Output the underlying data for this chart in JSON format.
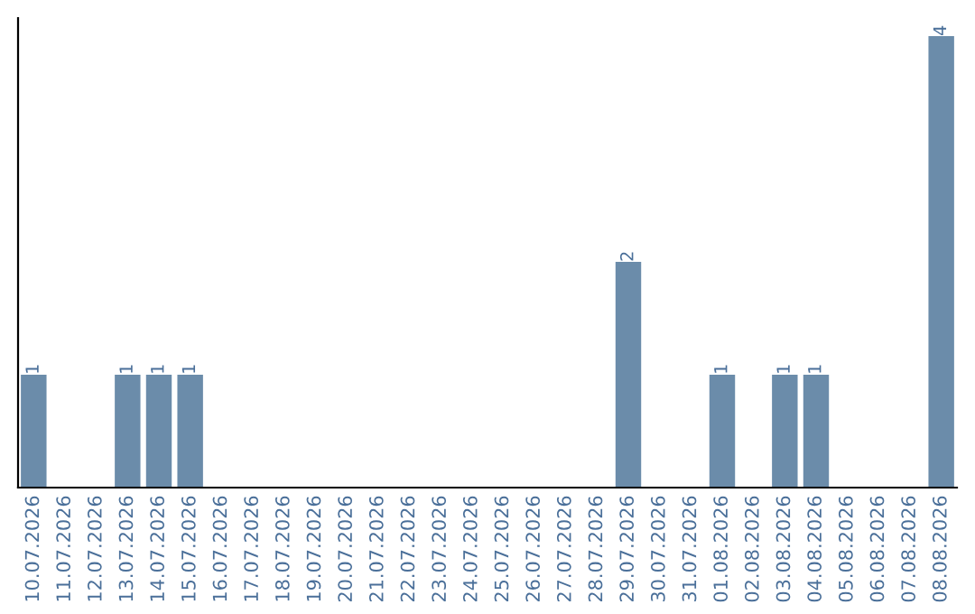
{
  "chart_data": {
    "type": "bar",
    "categories": [
      "10.07.2026",
      "11.07.2026",
      "12.07.2026",
      "13.07.2026",
      "14.07.2026",
      "15.07.2026",
      "16.07.2026",
      "17.07.2026",
      "18.07.2026",
      "19.07.2026",
      "20.07.2026",
      "21.07.2026",
      "22.07.2026",
      "23.07.2026",
      "24.07.2026",
      "25.07.2026",
      "26.07.2026",
      "27.07.2026",
      "28.07.2026",
      "29.07.2026",
      "30.07.2026",
      "31.07.2026",
      "01.08.2026",
      "02.08.2026",
      "03.08.2026",
      "04.08.2026",
      "05.08.2026",
      "06.08.2026",
      "07.08.2026",
      "08.08.2026"
    ],
    "values": [
      1,
      0,
      0,
      1,
      1,
      1,
      0,
      0,
      0,
      0,
      0,
      0,
      0,
      0,
      0,
      0,
      0,
      0,
      0,
      2,
      0,
      0,
      1,
      0,
      1,
      1,
      0,
      0,
      0,
      4
    ],
    "value_labels": [
      "1",
      null,
      null,
      "1",
      "1",
      "1",
      null,
      null,
      null,
      null,
      null,
      null,
      null,
      null,
      null,
      null,
      null,
      null,
      null,
      "2",
      null,
      null,
      "1",
      null,
      "1",
      "1",
      null,
      null,
      null,
      "4"
    ],
    "color": "#6b8caa",
    "ylim": [
      0,
      4.16
    ],
    "tick_labels": "x",
    "grid": false,
    "legend": false
  }
}
